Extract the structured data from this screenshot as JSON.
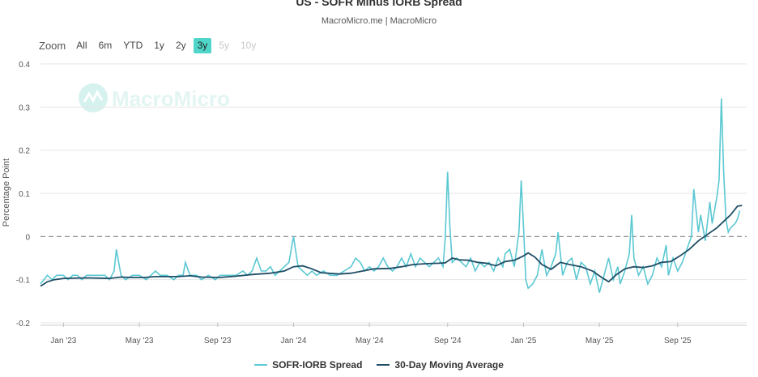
{
  "title": "US - SOFR Minus IORB Spread",
  "subtitle": "MacroMicro.me | MacroMicro",
  "watermark": "MacroMicro",
  "zoom": {
    "label": "Zoom",
    "buttons": [
      "All",
      "6m",
      "YTD",
      "1y",
      "2y",
      "3y",
      "5y",
      "10y"
    ],
    "active": "3y",
    "disabled": [
      "5y",
      "10y"
    ]
  },
  "colors": {
    "spread": "#5bc8d2",
    "moving_average": "#1f4e66",
    "zero_line": "#888888",
    "zoom_active": "#4fd6c9"
  },
  "chart_data": {
    "type": "line",
    "title": "US - SOFR Minus IORB Spread",
    "ylabel": "Percentage Point",
    "xlabel": "",
    "ylim": [
      -0.2,
      0.4
    ],
    "yticks": [
      "0.4",
      "0.3",
      "0.2",
      "0.1",
      "0",
      "-0.1",
      "-0.2"
    ],
    "x_range": [
      2022.9,
      2025.97
    ],
    "xticks": [
      {
        "label": "Jan '23",
        "t": 2023.0
      },
      {
        "label": "May '23",
        "t": 2023.33
      },
      {
        "label": "Sep '23",
        "t": 2023.67
      },
      {
        "label": "Jan '24",
        "t": 2024.0
      },
      {
        "label": "May '24",
        "t": 2024.33
      },
      {
        "label": "Sep '24",
        "t": 2024.67
      },
      {
        "label": "Jan '25",
        "t": 2025.0
      },
      {
        "label": "May '25",
        "t": 2025.33
      },
      {
        "label": "Sep '25",
        "t": 2025.67
      }
    ],
    "reference_line": {
      "y": 0,
      "style": "dashed"
    },
    "series": [
      {
        "name": "SOFR-IORB Spread",
        "points": [
          [
            2022.9,
            -0.11
          ],
          [
            2022.93,
            -0.09
          ],
          [
            2022.95,
            -0.1
          ],
          [
            2022.97,
            -0.09
          ],
          [
            2023.0,
            -0.09
          ],
          [
            2023.02,
            -0.1
          ],
          [
            2023.04,
            -0.09
          ],
          [
            2023.06,
            -0.09
          ],
          [
            2023.08,
            -0.1
          ],
          [
            2023.1,
            -0.09
          ],
          [
            2023.12,
            -0.09
          ],
          [
            2023.15,
            -0.09
          ],
          [
            2023.18,
            -0.09
          ],
          [
            2023.2,
            -0.1
          ],
          [
            2023.22,
            -0.08
          ],
          [
            2023.23,
            -0.03
          ],
          [
            2023.25,
            -0.09
          ],
          [
            2023.27,
            -0.1
          ],
          [
            2023.3,
            -0.09
          ],
          [
            2023.33,
            -0.09
          ],
          [
            2023.36,
            -0.1
          ],
          [
            2023.38,
            -0.09
          ],
          [
            2023.4,
            -0.08
          ],
          [
            2023.42,
            -0.09
          ],
          [
            2023.45,
            -0.09
          ],
          [
            2023.48,
            -0.1
          ],
          [
            2023.5,
            -0.09
          ],
          [
            2023.52,
            -0.09
          ],
          [
            2023.53,
            -0.06
          ],
          [
            2023.55,
            -0.09
          ],
          [
            2023.58,
            -0.09
          ],
          [
            2023.6,
            -0.1
          ],
          [
            2023.63,
            -0.09
          ],
          [
            2023.66,
            -0.1
          ],
          [
            2023.68,
            -0.09
          ],
          [
            2023.7,
            -0.09
          ],
          [
            2023.73,
            -0.09
          ],
          [
            2023.75,
            -0.09
          ],
          [
            2023.78,
            -0.08
          ],
          [
            2023.8,
            -0.09
          ],
          [
            2023.82,
            -0.08
          ],
          [
            2023.84,
            -0.05
          ],
          [
            2023.86,
            -0.08
          ],
          [
            2023.88,
            -0.08
          ],
          [
            2023.9,
            -0.07
          ],
          [
            2023.92,
            -0.09
          ],
          [
            2023.94,
            -0.08
          ],
          [
            2023.96,
            -0.07
          ],
          [
            2023.98,
            -0.06
          ],
          [
            2024.0,
            0.0
          ],
          [
            2024.02,
            -0.07
          ],
          [
            2024.04,
            -0.08
          ],
          [
            2024.06,
            -0.09
          ],
          [
            2024.08,
            -0.08
          ],
          [
            2024.1,
            -0.09
          ],
          [
            2024.13,
            -0.08
          ],
          [
            2024.16,
            -0.09
          ],
          [
            2024.19,
            -0.09
          ],
          [
            2024.22,
            -0.08
          ],
          [
            2024.25,
            -0.07
          ],
          [
            2024.27,
            -0.05
          ],
          [
            2024.29,
            -0.06
          ],
          [
            2024.31,
            -0.08
          ],
          [
            2024.33,
            -0.07
          ],
          [
            2024.35,
            -0.08
          ],
          [
            2024.37,
            -0.07
          ],
          [
            2024.39,
            -0.05
          ],
          [
            2024.41,
            -0.07
          ],
          [
            2024.43,
            -0.08
          ],
          [
            2024.45,
            -0.07
          ],
          [
            2024.47,
            -0.05
          ],
          [
            2024.49,
            -0.07
          ],
          [
            2024.51,
            -0.04
          ],
          [
            2024.53,
            -0.07
          ],
          [
            2024.55,
            -0.05
          ],
          [
            2024.57,
            -0.06
          ],
          [
            2024.59,
            -0.07
          ],
          [
            2024.61,
            -0.06
          ],
          [
            2024.63,
            -0.05
          ],
          [
            2024.65,
            -0.07
          ],
          [
            2024.66,
            0.0
          ],
          [
            2024.67,
            0.15
          ],
          [
            2024.68,
            0.02
          ],
          [
            2024.69,
            -0.06
          ],
          [
            2024.71,
            -0.05
          ],
          [
            2024.73,
            -0.06
          ],
          [
            2024.75,
            -0.07
          ],
          [
            2024.77,
            -0.05
          ],
          [
            2024.79,
            -0.08
          ],
          [
            2024.81,
            -0.06
          ],
          [
            2024.83,
            -0.07
          ],
          [
            2024.85,
            -0.06
          ],
          [
            2024.87,
            -0.08
          ],
          [
            2024.89,
            -0.05
          ],
          [
            2024.91,
            -0.07
          ],
          [
            2024.92,
            -0.04
          ],
          [
            2024.94,
            -0.03
          ],
          [
            2024.96,
            -0.07
          ],
          [
            2024.98,
            0.01
          ],
          [
            2024.99,
            0.13
          ],
          [
            2025.0,
            0.02
          ],
          [
            2025.01,
            -0.1
          ],
          [
            2025.02,
            -0.12
          ],
          [
            2025.04,
            -0.11
          ],
          [
            2025.06,
            -0.09
          ],
          [
            2025.08,
            -0.03
          ],
          [
            2025.1,
            -0.09
          ],
          [
            2025.12,
            -0.07
          ],
          [
            2025.14,
            -0.04
          ],
          [
            2025.15,
            0.01
          ],
          [
            2025.17,
            -0.09
          ],
          [
            2025.19,
            -0.06
          ],
          [
            2025.21,
            -0.05
          ],
          [
            2025.23,
            -0.1
          ],
          [
            2025.25,
            -0.06
          ],
          [
            2025.27,
            -0.07
          ],
          [
            2025.29,
            -0.11
          ],
          [
            2025.31,
            -0.08
          ],
          [
            2025.33,
            -0.13
          ],
          [
            2025.35,
            -0.09
          ],
          [
            2025.37,
            -0.05
          ],
          [
            2025.39,
            -0.1
          ],
          [
            2025.41,
            -0.07
          ],
          [
            2025.42,
            -0.11
          ],
          [
            2025.44,
            -0.08
          ],
          [
            2025.46,
            -0.04
          ],
          [
            2025.47,
            0.05
          ],
          [
            2025.48,
            -0.05
          ],
          [
            2025.5,
            -0.09
          ],
          [
            2025.52,
            -0.07
          ],
          [
            2025.54,
            -0.11
          ],
          [
            2025.56,
            -0.09
          ],
          [
            2025.58,
            -0.05
          ],
          [
            2025.6,
            -0.07
          ],
          [
            2025.62,
            -0.02
          ],
          [
            2025.63,
            -0.09
          ],
          [
            2025.65,
            -0.05
          ],
          [
            2025.67,
            -0.08
          ],
          [
            2025.69,
            -0.06
          ],
          [
            2025.71,
            -0.03
          ],
          [
            2025.73,
            0.0
          ],
          [
            2025.74,
            0.11
          ],
          [
            2025.76,
            0.01
          ],
          [
            2025.77,
            0.05
          ],
          [
            2025.79,
            -0.01
          ],
          [
            2025.81,
            0.08
          ],
          [
            2025.82,
            0.03
          ],
          [
            2025.84,
            0.09
          ],
          [
            2025.85,
            0.13
          ],
          [
            2025.86,
            0.32
          ],
          [
            2025.87,
            0.15
          ],
          [
            2025.88,
            0.04
          ],
          [
            2025.89,
            0.01
          ],
          [
            2025.9,
            0.02
          ],
          [
            2025.92,
            0.03
          ],
          [
            2025.93,
            0.04
          ],
          [
            2025.94,
            0.06
          ]
        ]
      },
      {
        "name": "30-Day Moving Average",
        "points": [
          [
            2022.9,
            -0.115
          ],
          [
            2022.93,
            -0.105
          ],
          [
            2022.96,
            -0.1
          ],
          [
            2023.0,
            -0.097
          ],
          [
            2023.1,
            -0.096
          ],
          [
            2023.2,
            -0.097
          ],
          [
            2023.25,
            -0.094
          ],
          [
            2023.3,
            -0.095
          ],
          [
            2023.35,
            -0.095
          ],
          [
            2023.4,
            -0.093
          ],
          [
            2023.5,
            -0.093
          ],
          [
            2023.55,
            -0.091
          ],
          [
            2023.6,
            -0.094
          ],
          [
            2023.68,
            -0.095
          ],
          [
            2023.75,
            -0.092
          ],
          [
            2023.82,
            -0.088
          ],
          [
            2023.9,
            -0.085
          ],
          [
            2023.96,
            -0.08
          ],
          [
            2024.0,
            -0.07
          ],
          [
            2024.04,
            -0.068
          ],
          [
            2024.08,
            -0.075
          ],
          [
            2024.12,
            -0.084
          ],
          [
            2024.2,
            -0.087
          ],
          [
            2024.25,
            -0.085
          ],
          [
            2024.3,
            -0.08
          ],
          [
            2024.35,
            -0.075
          ],
          [
            2024.42,
            -0.074
          ],
          [
            2024.47,
            -0.07
          ],
          [
            2024.52,
            -0.065
          ],
          [
            2024.58,
            -0.063
          ],
          [
            2024.63,
            -0.062
          ],
          [
            2024.66,
            -0.061
          ],
          [
            2024.69,
            -0.05
          ],
          [
            2024.72,
            -0.054
          ],
          [
            2024.76,
            -0.055
          ],
          [
            2024.8,
            -0.06
          ],
          [
            2024.84,
            -0.062
          ],
          [
            2024.88,
            -0.068
          ],
          [
            2024.92,
            -0.058
          ],
          [
            2024.96,
            -0.055
          ],
          [
            2025.0,
            -0.045
          ],
          [
            2025.02,
            -0.038
          ],
          [
            2025.05,
            -0.048
          ],
          [
            2025.08,
            -0.065
          ],
          [
            2025.12,
            -0.076
          ],
          [
            2025.16,
            -0.06
          ],
          [
            2025.2,
            -0.065
          ],
          [
            2025.25,
            -0.07
          ],
          [
            2025.3,
            -0.08
          ],
          [
            2025.34,
            -0.095
          ],
          [
            2025.37,
            -0.105
          ],
          [
            2025.4,
            -0.09
          ],
          [
            2025.44,
            -0.075
          ],
          [
            2025.48,
            -0.07
          ],
          [
            2025.52,
            -0.072
          ],
          [
            2025.56,
            -0.068
          ],
          [
            2025.6,
            -0.06
          ],
          [
            2025.64,
            -0.058
          ],
          [
            2025.68,
            -0.045
          ],
          [
            2025.72,
            -0.03
          ],
          [
            2025.76,
            -0.01
          ],
          [
            2025.8,
            0.005
          ],
          [
            2025.84,
            0.02
          ],
          [
            2025.87,
            0.035
          ],
          [
            2025.9,
            0.05
          ],
          [
            2025.93,
            0.07
          ],
          [
            2025.95,
            0.072
          ]
        ]
      }
    ]
  },
  "legend": {
    "items": [
      {
        "label": "SOFR-IORB Spread"
      },
      {
        "label": "30-Day Moving Average"
      }
    ]
  }
}
